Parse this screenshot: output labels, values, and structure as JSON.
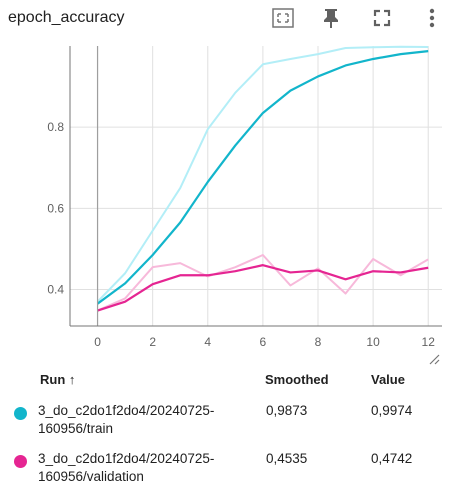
{
  "header": {
    "title": "epoch_accuracy"
  },
  "chart_data": {
    "type": "line",
    "title": "epoch_accuracy",
    "xlim": [
      -1,
      12.5
    ],
    "ylim": [
      0.31,
      1.0
    ],
    "x_ticks": [
      0,
      2,
      4,
      6,
      8,
      10,
      12
    ],
    "y_ticks": [
      0.4,
      0.6,
      0.8
    ],
    "grid": true,
    "series": [
      {
        "name": "3_do_c2do1f2do4/20240725-160956/train",
        "color": "#12b5cb",
        "raw_color": "#b3eef7",
        "x": [
          0,
          1,
          2,
          3,
          4,
          5,
          6,
          7,
          8,
          9,
          10,
          11,
          12
        ],
        "raw": [
          0.37,
          0.44,
          0.545,
          0.65,
          0.795,
          0.885,
          0.955,
          0.968,
          0.98,
          0.995,
          0.997,
          0.998,
          0.9974
        ],
        "smoothed": [
          0.365,
          0.415,
          0.485,
          0.565,
          0.665,
          0.755,
          0.835,
          0.89,
          0.925,
          0.952,
          0.968,
          0.98,
          0.9873
        ]
      },
      {
        "name": "3_do_c2do1f2do4/20240725-160956/validation",
        "color": "#e52592",
        "raw_color": "#f7b9da",
        "x": [
          0,
          1,
          2,
          3,
          4,
          5,
          6,
          7,
          8,
          9,
          10,
          11,
          12
        ],
        "raw": [
          0.348,
          0.378,
          0.455,
          0.465,
          0.432,
          0.455,
          0.485,
          0.41,
          0.452,
          0.39,
          0.475,
          0.435,
          0.4742
        ],
        "smoothed": [
          0.348,
          0.37,
          0.413,
          0.435,
          0.435,
          0.445,
          0.46,
          0.442,
          0.447,
          0.425,
          0.445,
          0.442,
          0.4535
        ]
      }
    ]
  },
  "legend": {
    "headers": {
      "run": "Run ↑",
      "smoothed": "Smoothed",
      "value": "Value"
    },
    "rows": [
      {
        "run": "3_do_c2do1f2do4/20240725-160956/train",
        "run_line1": "3_do_c2do1f2do4/20240725-",
        "run_line2": "160956/train",
        "smoothed": "0,9873",
        "value": "0,9974",
        "color": "#12b5cb"
      },
      {
        "run": "3_do_c2do1f2do4/20240725-160956/validation",
        "run_line1": "3_do_c2do1f2do4/20240725-",
        "run_line2": "160956/validation",
        "smoothed": "0,4535",
        "value": "0,4742",
        "color": "#e52592"
      }
    ]
  }
}
